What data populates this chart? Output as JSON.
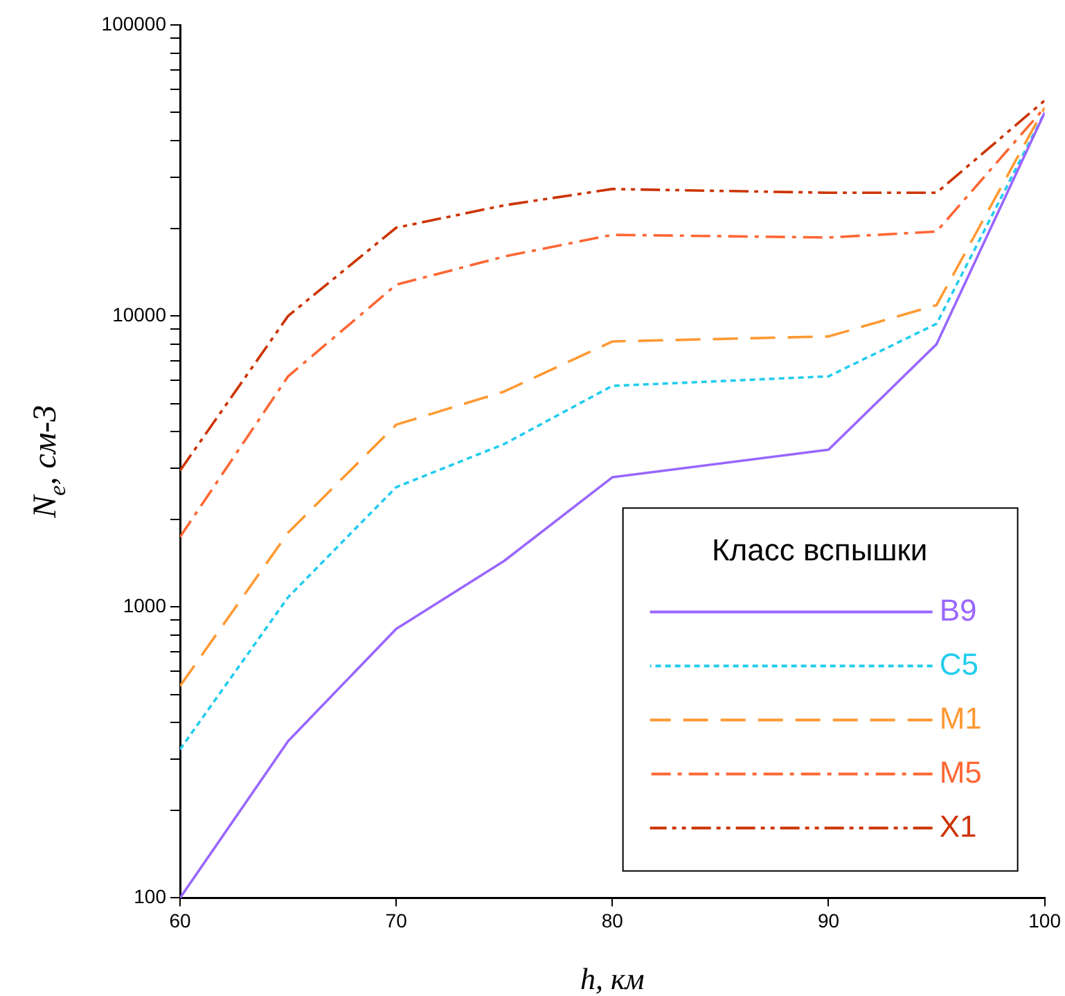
{
  "chart_data": {
    "type": "line",
    "xlabel": "h, км",
    "ylabel": "N$_{e}$, см-3",
    "legend_title": "Класс вспышки",
    "legend": "bottom right",
    "log": "y",
    "grid": false,
    "marker": "none",
    "x": [
      60,
      65,
      70,
      75,
      80,
      90,
      95,
      100
    ],
    "xlim": [
      60,
      100
    ],
    "xticks": [
      60,
      70,
      80,
      90,
      100
    ],
    "ylim": [
      100,
      100000
    ],
    "yticks": [
      100,
      {
        "value": 200,
        "label": null
      },
      {
        "value": 300,
        "label": null
      },
      {
        "value": 400,
        "label": null
      },
      {
        "value": 500,
        "label": null
      },
      {
        "value": 600,
        "label": null
      },
      {
        "value": 700,
        "label": null
      },
      {
        "value": 800,
        "label": null
      },
      {
        "value": 900,
        "label": null
      },
      1000,
      {
        "value": 2000,
        "label": null
      },
      {
        "value": 3000,
        "label": null
      },
      {
        "value": 4000,
        "label": null
      },
      {
        "value": 5000,
        "label": null
      },
      {
        "value": 6000,
        "label": null
      },
      {
        "value": 7000,
        "label": null
      },
      {
        "value": 8000,
        "label": null
      },
      {
        "value": 9000,
        "label": null
      },
      10000,
      {
        "value": 20000,
        "label": null
      },
      {
        "value": 30000,
        "label": null
      },
      {
        "value": 40000,
        "label": null
      },
      {
        "value": 50000,
        "label": null
      },
      {
        "value": 60000,
        "label": null
      },
      {
        "value": 70000,
        "label": null
      },
      {
        "value": 80000,
        "label": null
      },
      {
        "value": 90000,
        "label": null
      },
      100000
    ],
    "series": [
      {
        "name": "B9",
        "color": "#9966ff",
        "line_style": "solid",
        "values": [
          100,
          346,
          840,
          1440,
          2790,
          3470,
          8000,
          50000
        ]
      },
      {
        "name": "C5",
        "color": "#22ccee",
        "line_style": "dotted",
        "values": [
          324,
          1080,
          2580,
          3630,
          5750,
          6200,
          9400,
          50000
        ]
      },
      {
        "name": "M1",
        "color": "#ff9933",
        "line_style": "dashed",
        "values": [
          535,
          1800,
          4230,
          5500,
          8170,
          8500,
          10900,
          52000
        ]
      },
      {
        "name": "M5",
        "color": "#ff6633",
        "line_style": "dashdot",
        "values": [
          1740,
          6200,
          12800,
          16000,
          19000,
          18600,
          19500,
          52000
        ]
      },
      {
        "name": "X1",
        "color": "#cc3300",
        "line_style": "dashdotdot",
        "values": [
          2940,
          10000,
          20100,
          24000,
          27300,
          26500,
          26500,
          55000
        ]
      }
    ]
  }
}
